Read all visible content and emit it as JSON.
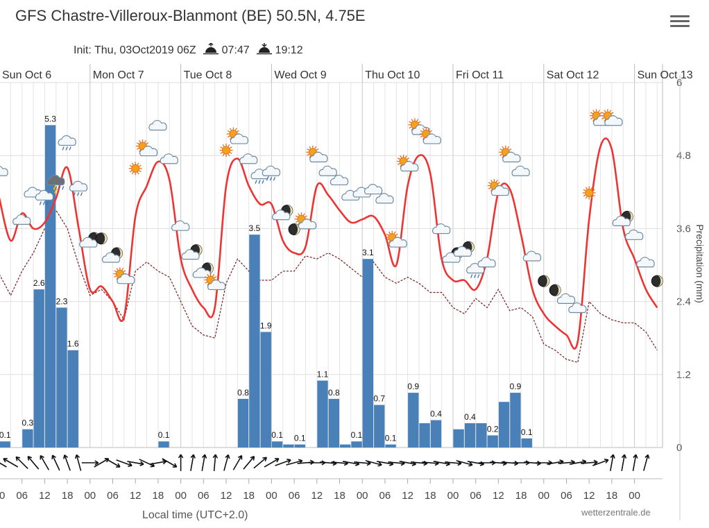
{
  "header": {
    "title": "GFS Chastre-Villeroux-Blanmont (BE) 50.5N, 4.75E",
    "init_label": "Init: Thu, 03Oct2019 06Z",
    "sunrise": "07:47",
    "sunset": "19:12"
  },
  "credit": "wetterzentrale.de",
  "menu_icon": "hamburger-menu-icon",
  "chart_data": {
    "type": "bar",
    "xlabel": "Local time (UTC+2.0)",
    "ylabel_right": "Precipitation (mm)",
    "ylim": [
      0,
      6
    ],
    "y_ticks": [
      "0",
      "1.2",
      "2.4",
      "3.6",
      "4.8",
      "6"
    ],
    "day_labels": [
      "Sun Oct 6",
      "Mon Oct 7",
      "Tue Oct 8",
      "Wed Oct 9",
      "Thu Oct 10",
      "Fri Oct 11",
      "Sat Oct 12",
      "Sun Oct 13"
    ],
    "hour_ticks": [
      "00",
      "06",
      "12",
      "18",
      "00",
      "06",
      "12",
      "18",
      "00",
      "06",
      "12",
      "18",
      "00",
      "06",
      "12",
      "18",
      "00",
      "06",
      "12",
      "18",
      "00",
      "06",
      "12",
      "18",
      "00",
      "06",
      "12",
      "18",
      "00"
    ],
    "precip_bars": [
      {
        "t": 3,
        "value": 0.1,
        "label": "0.1"
      },
      {
        "t": 9,
        "value": 0.3,
        "label": "0.3"
      },
      {
        "t": 12,
        "value": 2.6,
        "label": "2.6"
      },
      {
        "t": 15,
        "value": 5.3,
        "label": "5.3"
      },
      {
        "t": 18,
        "value": 2.3,
        "label": "2.3"
      },
      {
        "t": 21,
        "value": 1.6,
        "label": "1.6"
      },
      {
        "t": 45,
        "value": 0.1,
        "label": "0.1"
      },
      {
        "t": 66,
        "value": 0.8,
        "label": "0.8"
      },
      {
        "t": 69,
        "value": 3.5,
        "label": "3.5"
      },
      {
        "t": 72,
        "value": 1.9,
        "label": "1.9"
      },
      {
        "t": 75,
        "value": 0.1,
        "label": "0.1"
      },
      {
        "t": 78,
        "value": 0.05,
        "label": ""
      },
      {
        "t": 81,
        "value": 0.05,
        "label": "0.1"
      },
      {
        "t": 87,
        "value": 1.1,
        "label": "1.1"
      },
      {
        "t": 90,
        "value": 0.8,
        "label": "0.8"
      },
      {
        "t": 93,
        "value": 0.05,
        "label": ""
      },
      {
        "t": 96,
        "value": 0.1,
        "label": "0.1"
      },
      {
        "t": 99,
        "value": 3.1,
        "label": "3.1"
      },
      {
        "t": 102,
        "value": 0.7,
        "label": "0.7"
      },
      {
        "t": 105,
        "value": 0.05,
        "label": "0.1"
      },
      {
        "t": 111,
        "value": 0.9,
        "label": "0.9"
      },
      {
        "t": 114,
        "value": 0.4,
        "label": ""
      },
      {
        "t": 117,
        "value": 0.45,
        "label": "0.4"
      },
      {
        "t": 123,
        "value": 0.3,
        "label": ""
      },
      {
        "t": 126,
        "value": 0.4,
        "label": "0.4"
      },
      {
        "t": 129,
        "value": 0.4,
        "label": ""
      },
      {
        "t": 132,
        "value": 0.2,
        "label": "0.2"
      },
      {
        "t": 135,
        "value": 0.75,
        "label": ""
      },
      {
        "t": 138,
        "value": 0.9,
        "label": "0.9"
      },
      {
        "t": 141,
        "value": 0.15,
        "label": "0.1"
      }
    ],
    "temp_series": {
      "name": "Temperature",
      "color": "#ee3333",
      "t": [
        0,
        3,
        6,
        9,
        12,
        15,
        18,
        21,
        24,
        27,
        30,
        33,
        36,
        39,
        42,
        45,
        48,
        51,
        54,
        57,
        60,
        63,
        66,
        69,
        72,
        75,
        78,
        81,
        84,
        87,
        90,
        93,
        96,
        99,
        102,
        105,
        108,
        111,
        114,
        117,
        120,
        123,
        126,
        129,
        132,
        135,
        138,
        141,
        144,
        147,
        150,
        153,
        156,
        159,
        162,
        165,
        168,
        171,
        174
      ],
      "v": [
        4.1,
        3.4,
        3.85,
        3.6,
        3.7,
        4.1,
        4.6,
        3.6,
        2.6,
        2.65,
        2.4,
        2.15,
        3.8,
        4.3,
        4.7,
        4.4,
        3.1,
        2.6,
        2.3,
        2.3,
        4.3,
        4.75,
        4.3,
        4.0,
        4.0,
        3.4,
        3.2,
        3.3,
        4.3,
        4.15,
        3.9,
        3.7,
        3.75,
        3.8,
        3.5,
        3.0,
        4.3,
        4.8,
        4.5,
        3.1,
        2.75,
        2.75,
        2.6,
        3.1,
        4.2,
        4.25,
        3.5,
        2.6,
        2.2,
        2.0,
        1.85,
        1.75,
        3.75,
        4.95,
        4.9,
        3.6,
        3.1,
        2.6,
        2.3
      ]
    },
    "dewpoint_series": {
      "name": "Dew point",
      "color": "#7a1a1a",
      "t": [
        0,
        3,
        6,
        9,
        12,
        15,
        18,
        21,
        24,
        27,
        30,
        33,
        36,
        39,
        42,
        45,
        48,
        51,
        54,
        57,
        60,
        63,
        66,
        69,
        72,
        75,
        78,
        81,
        84,
        87,
        90,
        93,
        96,
        99,
        102,
        105,
        108,
        111,
        114,
        117,
        120,
        123,
        126,
        129,
        132,
        135,
        138,
        141,
        144,
        147,
        150,
        153,
        156,
        159,
        162,
        165,
        168,
        171,
        174
      ],
      "v": [
        2.85,
        2.5,
        2.9,
        3.2,
        3.6,
        3.9,
        3.6,
        3.0,
        2.5,
        2.6,
        2.4,
        2.1,
        2.9,
        3.05,
        2.9,
        2.8,
        2.4,
        2.0,
        1.85,
        1.8,
        2.7,
        3.1,
        2.9,
        2.75,
        2.75,
        2.9,
        2.9,
        3.15,
        3.1,
        3.2,
        3.1,
        2.95,
        2.8,
        3.05,
        2.8,
        2.7,
        2.8,
        2.7,
        2.55,
        2.55,
        2.3,
        2.2,
        2.45,
        2.3,
        2.6,
        2.25,
        2.3,
        2.15,
        1.7,
        1.6,
        1.45,
        1.4,
        2.4,
        2.2,
        2.1,
        2.05,
        2.05,
        1.9,
        1.6
      ]
    },
    "weather_icons": [
      {
        "t": 0,
        "v": 4.4,
        "kind": "cloud"
      },
      {
        "t": 6,
        "v": 3.6,
        "kind": "cloud"
      },
      {
        "t": 9,
        "v": 4.05,
        "kind": "cloud"
      },
      {
        "t": 12,
        "v": 4.0,
        "kind": "cloud-rain"
      },
      {
        "t": 15,
        "v": 4.25,
        "kind": "storm"
      },
      {
        "t": 18,
        "v": 4.9,
        "kind": "cloud-rain"
      },
      {
        "t": 21,
        "v": 4.15,
        "kind": "cloud-rain"
      },
      {
        "t": 24,
        "v": 3.25,
        "kind": "moon-cloud"
      },
      {
        "t": 27,
        "v": 3.3,
        "kind": "moon"
      },
      {
        "t": 30,
        "v": 3.0,
        "kind": "moon-cloud"
      },
      {
        "t": 33,
        "v": 2.65,
        "kind": "sun-cloud"
      },
      {
        "t": 36,
        "v": 4.45,
        "kind": "sun"
      },
      {
        "t": 39,
        "v": 4.75,
        "kind": "sun-cloud"
      },
      {
        "t": 42,
        "v": 5.15,
        "kind": "cloud"
      },
      {
        "t": 45,
        "v": 4.6,
        "kind": "cloud"
      },
      {
        "t": 48,
        "v": 3.5,
        "kind": "cloud"
      },
      {
        "t": 51,
        "v": 3.05,
        "kind": "moon-cloud"
      },
      {
        "t": 54,
        "v": 2.75,
        "kind": "moon-cloud"
      },
      {
        "t": 57,
        "v": 2.55,
        "kind": "sun-cloud"
      },
      {
        "t": 60,
        "v": 4.75,
        "kind": "sun"
      },
      {
        "t": 63,
        "v": 4.95,
        "kind": "sun-cloud"
      },
      {
        "t": 66,
        "v": 4.6,
        "kind": "cloud"
      },
      {
        "t": 69,
        "v": 4.35,
        "kind": "cloud-rain"
      },
      {
        "t": 72,
        "v": 4.4,
        "kind": "cloud-rain"
      },
      {
        "t": 75,
        "v": 3.7,
        "kind": "moon-cloud"
      },
      {
        "t": 78,
        "v": 3.45,
        "kind": "moon"
      },
      {
        "t": 81,
        "v": 3.55,
        "kind": "sun-cloud"
      },
      {
        "t": 84,
        "v": 4.65,
        "kind": "sun-cloud"
      },
      {
        "t": 87,
        "v": 4.4,
        "kind": "cloud"
      },
      {
        "t": 90,
        "v": 4.25,
        "kind": "cloud"
      },
      {
        "t": 93,
        "v": 4.0,
        "kind": "cloud"
      },
      {
        "t": 96,
        "v": 4.05,
        "kind": "cloud"
      },
      {
        "t": 99,
        "v": 4.1,
        "kind": "cloud"
      },
      {
        "t": 102,
        "v": 3.95,
        "kind": "cloud"
      },
      {
        "t": 105,
        "v": 3.25,
        "kind": "sun-cloud"
      },
      {
        "t": 108,
        "v": 4.5,
        "kind": "sun-cloud"
      },
      {
        "t": 111,
        "v": 5.1,
        "kind": "sun-cloud"
      },
      {
        "t": 114,
        "v": 4.95,
        "kind": "sun-cloud"
      },
      {
        "t": 117,
        "v": 3.45,
        "kind": "cloud"
      },
      {
        "t": 120,
        "v": 3.0,
        "kind": "moon-cloud"
      },
      {
        "t": 123,
        "v": 3.1,
        "kind": "moon-cloud"
      },
      {
        "t": 126,
        "v": 2.8,
        "kind": "cloud-rain"
      },
      {
        "t": 129,
        "v": 2.9,
        "kind": "cloud"
      },
      {
        "t": 132,
        "v": 4.1,
        "kind": "sun-cloud"
      },
      {
        "t": 135,
        "v": 4.65,
        "kind": "sun-cloud"
      },
      {
        "t": 138,
        "v": 4.4,
        "kind": "cloud"
      },
      {
        "t": 141,
        "v": 3.0,
        "kind": "cloud"
      },
      {
        "t": 144,
        "v": 2.6,
        "kind": "moon"
      },
      {
        "t": 147,
        "v": 2.45,
        "kind": "moon"
      },
      {
        "t": 150,
        "v": 2.3,
        "kind": "cloud"
      },
      {
        "t": 153,
        "v": 2.15,
        "kind": "cloud"
      },
      {
        "t": 156,
        "v": 4.05,
        "kind": "sun"
      },
      {
        "t": 159,
        "v": 5.25,
        "kind": "sun-cloud"
      },
      {
        "t": 162,
        "v": 5.25,
        "kind": "sun-cloud"
      },
      {
        "t": 165,
        "v": 3.6,
        "kind": "moon-cloud"
      },
      {
        "t": 168,
        "v": 3.35,
        "kind": "cloud"
      },
      {
        "t": 171,
        "v": 2.9,
        "kind": "cloud"
      },
      {
        "t": 174,
        "v": 2.6,
        "kind": "moon"
      }
    ],
    "wind_dirs_deg": [
      300,
      300,
      315,
      320,
      330,
      335,
      340,
      345,
      90,
      60,
      120,
      110,
      100,
      115,
      80,
      120,
      0,
      10,
      10,
      5,
      15,
      30,
      40,
      50,
      60,
      70,
      75,
      85,
      90,
      95,
      95,
      100,
      95,
      105,
      100,
      95,
      100,
      95,
      95,
      100,
      95,
      105,
      100,
      90,
      95,
      95,
      90,
      95,
      90,
      80,
      85,
      80,
      85,
      70,
      10,
      10,
      10,
      15
    ]
  }
}
